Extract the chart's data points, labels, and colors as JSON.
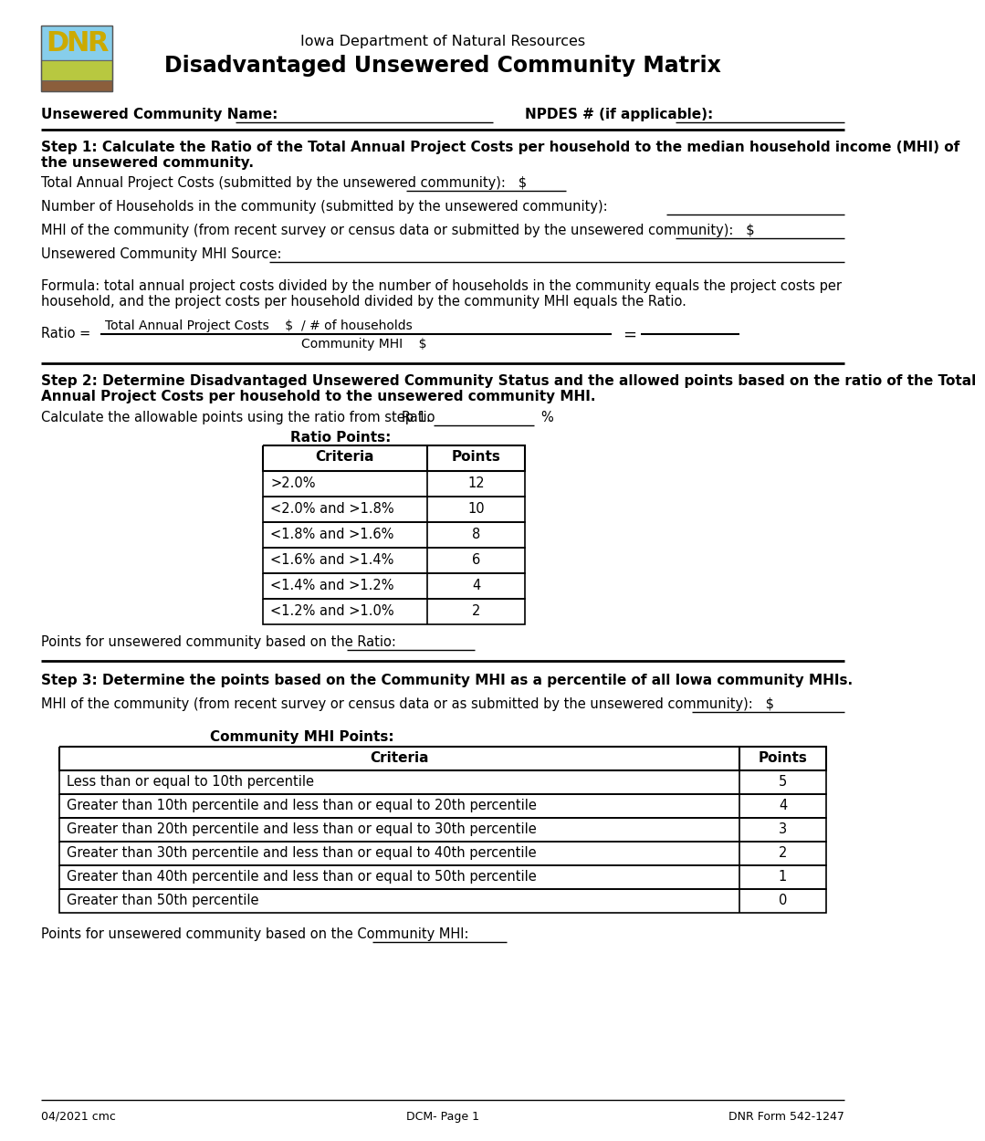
{
  "title_line1": "Iowa Department of Natural Resources",
  "title_line2": "Disadvantaged Unsewered Community Matrix",
  "community_name_label": "Unsewered Community Name:",
  "npdes_label": "NPDES # (if applicable):",
  "step1_title_a": "Step 1: Calculate the Ratio of the Total Annual Project Costs per household to the median household income (MHI) of",
  "step1_title_b": "the unsewered community.",
  "step1_line1": "Total Annual Project Costs (submitted by the unsewered community):   $",
  "step1_line2": "Number of Households in the community (submitted by the unsewered community):",
  "step1_line3": "MHI of the community (from recent survey or census data or submitted by the unsewered community):   $",
  "step1_line4": "Unsewered Community MHI Source:",
  "formula_a": "Formula: total annual project costs divided by the number of households in the community equals the project costs per",
  "formula_b": "household, and the project costs per household divided by the community MHI equals the Ratio.",
  "ratio_eq": "Ratio =",
  "ratio_num_a": "Total Annual Project Costs    $",
  "ratio_num_b": "/ # of households",
  "ratio_den": "Community MHI    $",
  "step2_title_a": "Step 2: Determine Disadvantaged Unsewered Community Status and the allowed points based on the ratio of the Total",
  "step2_title_b": "Annual Project Costs per household to the unsewered community MHI.",
  "step2_calc": "Calculate the allowable points using the ratio from step 1.",
  "ratio_word": "Ratio",
  "pct_word": "%",
  "ratio_pts_title": "Ratio Points:",
  "ratio_headers": [
    "Criteria",
    "Points"
  ],
  "ratio_rows": [
    [
      ">2.0%",
      "12"
    ],
    [
      "<2.0% and >1.8%",
      "10"
    ],
    [
      "<1.8% and >1.6%",
      "8"
    ],
    [
      "<1.6% and >1.4%",
      "6"
    ],
    [
      "<1.4% and >1.2%",
      "4"
    ],
    [
      "<1.2% and >1.0%",
      "2"
    ]
  ],
  "pts_ratio": "Points for unsewered community based on the Ratio:",
  "step3_title": "Step 3: Determine the points based on the Community MHI as a percentile of all Iowa community MHIs.",
  "step3_line": "MHI of the community (from recent survey or census data or as submitted by the unsewered community):   $",
  "mhi_pts_title": "Community MHI Points:",
  "mhi_headers": [
    "Criteria",
    "Points"
  ],
  "mhi_rows": [
    [
      "Less than or equal to 10th percentile",
      "5"
    ],
    [
      "Greater than 10th percentile and less than or equal to 20th percentile",
      "4"
    ],
    [
      "Greater than 20th percentile and less than or equal to 30th percentile",
      "3"
    ],
    [
      "Greater than 30th percentile and less than or equal to 40th percentile",
      "2"
    ],
    [
      "Greater than 40th percentile and less than or equal to 50th percentile",
      "1"
    ],
    [
      "Greater than 50th percentile",
      "0"
    ]
  ],
  "pts_mhi": "Points for unsewered community based on the Community MHI:",
  "footer_l": "04/2021 cmc",
  "footer_c": "DCM- Page 1",
  "footer_r": "DNR Form 542-1247"
}
